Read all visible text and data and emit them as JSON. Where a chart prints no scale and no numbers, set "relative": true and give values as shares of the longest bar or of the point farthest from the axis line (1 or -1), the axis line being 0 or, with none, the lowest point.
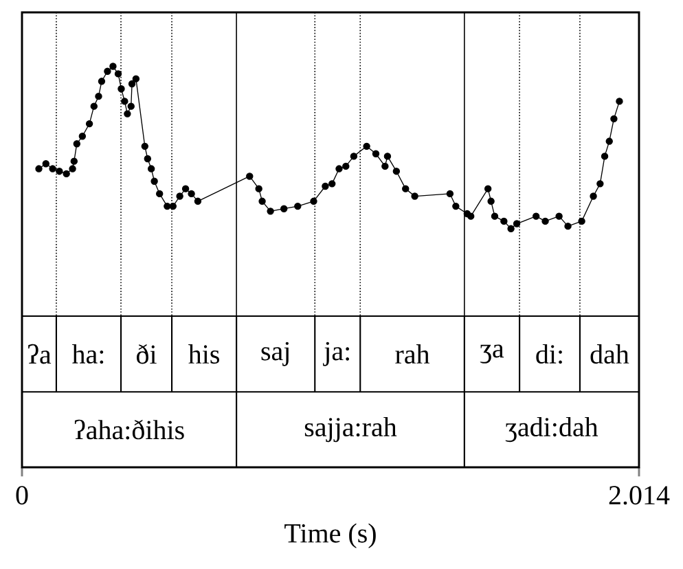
{
  "chart_data": {
    "type": "line",
    "xlabel": "Time (s)",
    "relative": true,
    "marker": "circle",
    "line_style": "solid",
    "tick_labels": "x",
    "xlim": [
      0,
      2.014
    ],
    "xticks": [
      0,
      2.014
    ],
    "series": [
      {
        "color": "#000000",
        "x": [
          0.055,
          0.078,
          0.1,
          0.122,
          0.145,
          0.165,
          0.17,
          0.179,
          0.197,
          0.22,
          0.235,
          0.25,
          0.26,
          0.279,
          0.297,
          0.314,
          0.324,
          0.335,
          0.344,
          0.356,
          0.359,
          0.372,
          0.401,
          0.41,
          0.422,
          0.432,
          0.449,
          0.474,
          0.493,
          0.515,
          0.534,
          0.553,
          0.574,
          0.743,
          0.773,
          0.784,
          0.811,
          0.855,
          0.9,
          0.952,
          0.99,
          1.012,
          1.035,
          1.057,
          1.083,
          1.125,
          1.155,
          1.185,
          1.193,
          1.222,
          1.252,
          1.282,
          1.397,
          1.416,
          1.453,
          1.465,
          1.521,
          1.531,
          1.543,
          1.573,
          1.596,
          1.615,
          1.678,
          1.708,
          1.753,
          1.782,
          1.827,
          1.865,
          1.887,
          1.902,
          1.917,
          1.932,
          1.95
        ],
        "values": [
          0.59,
          0.61,
          0.59,
          0.58,
          0.57,
          0.59,
          0.62,
          0.69,
          0.72,
          0.77,
          0.84,
          0.88,
          0.94,
          0.98,
          1.0,
          0.97,
          0.91,
          0.86,
          0.81,
          0.84,
          0.93,
          0.95,
          0.68,
          0.63,
          0.59,
          0.54,
          0.49,
          0.44,
          0.44,
          0.48,
          0.51,
          0.49,
          0.46,
          0.56,
          0.51,
          0.46,
          0.42,
          0.43,
          0.44,
          0.46,
          0.52,
          0.53,
          0.59,
          0.6,
          0.64,
          0.68,
          0.65,
          0.6,
          0.64,
          0.58,
          0.51,
          0.48,
          0.49,
          0.44,
          0.41,
          0.4,
          0.51,
          0.46,
          0.4,
          0.38,
          0.35,
          0.37,
          0.4,
          0.38,
          0.4,
          0.36,
          0.38,
          0.48,
          0.53,
          0.64,
          0.7,
          0.79,
          0.86
        ]
      }
    ],
    "ref_lines": [
      {
        "axis": "x",
        "value": 0.112,
        "line_style": "dotted"
      },
      {
        "axis": "x",
        "value": 0.323,
        "line_style": "dotted"
      },
      {
        "axis": "x",
        "value": 0.489,
        "line_style": "dotted"
      },
      {
        "axis": "x",
        "value": 0.7,
        "line_style": "solid"
      },
      {
        "axis": "x",
        "value": 0.956,
        "line_style": "dotted"
      },
      {
        "axis": "x",
        "value": 1.104,
        "line_style": "dotted"
      },
      {
        "axis": "x",
        "value": 1.444,
        "line_style": "solid"
      },
      {
        "axis": "x",
        "value": 1.624,
        "line_style": "dotted"
      },
      {
        "axis": "x",
        "value": 1.821,
        "line_style": "dotted"
      }
    ],
    "annotations": [
      "ʔa",
      "ha:",
      "ði",
      "his",
      "saj",
      "ja:",
      "rah",
      "ʒa",
      "di:",
      "dah",
      "ʔaha:ðihis",
      "sajja:rah",
      "ʒadi:dah"
    ]
  }
}
